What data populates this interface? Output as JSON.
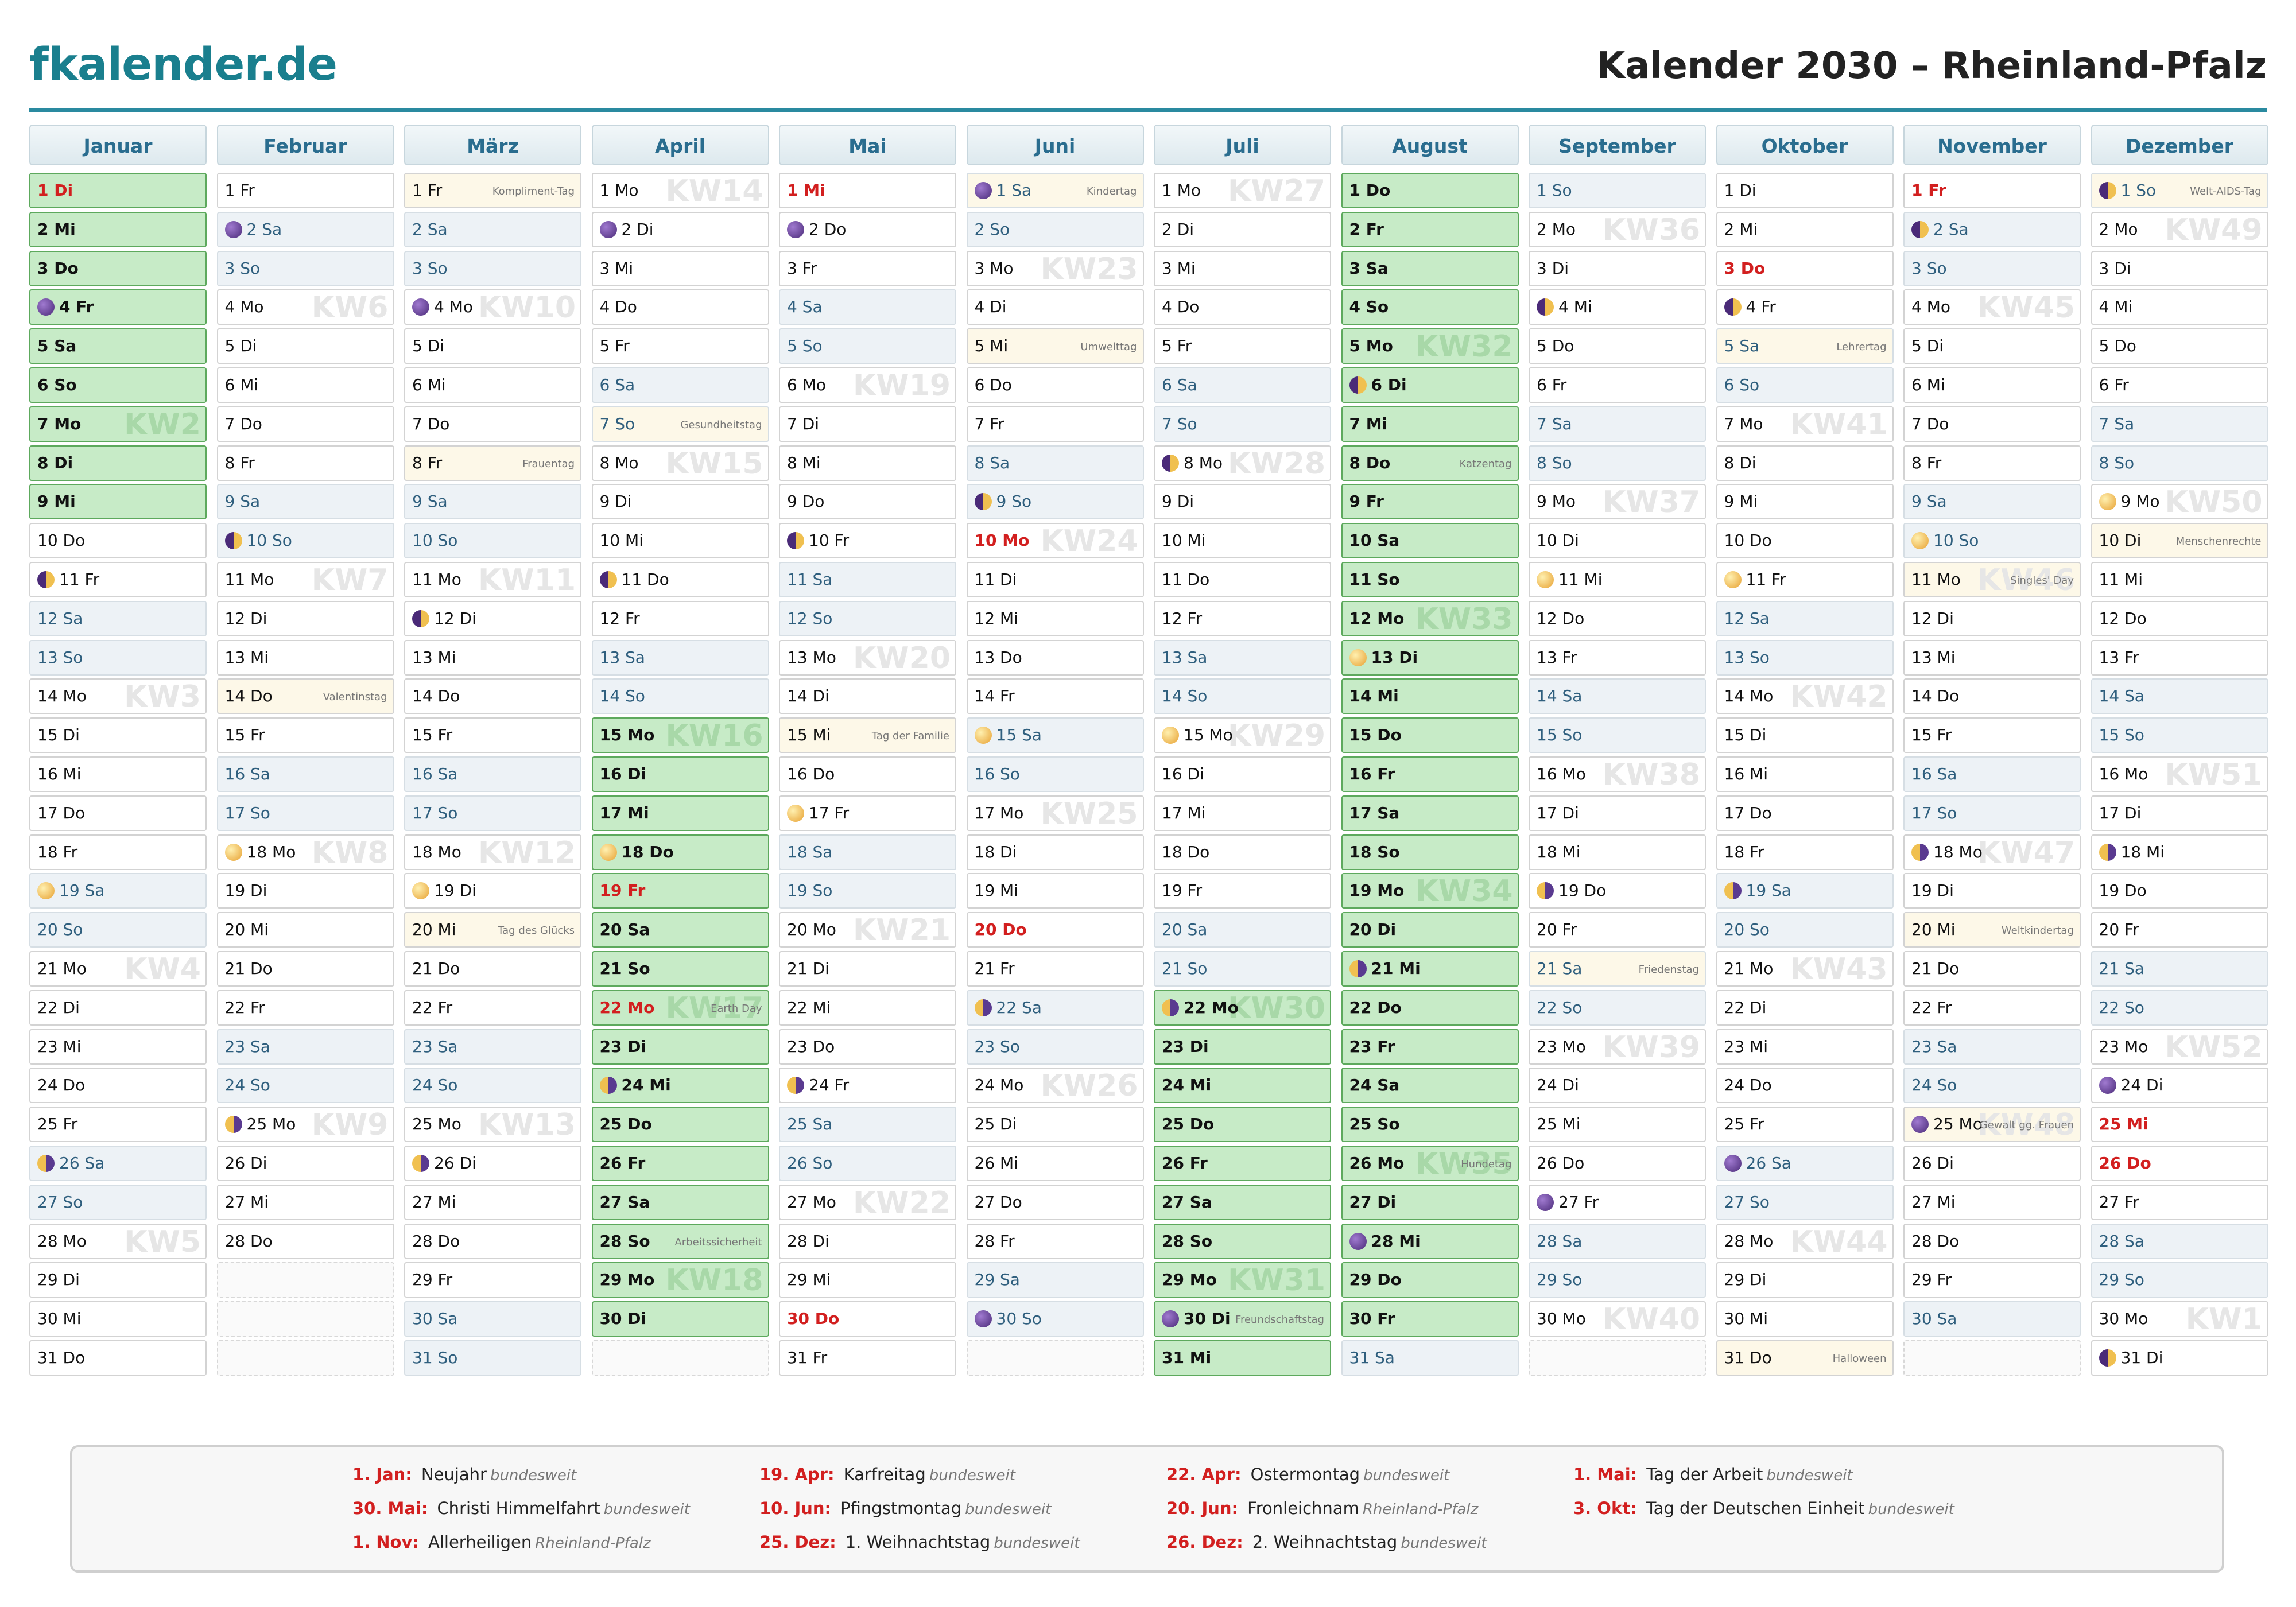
{
  "header": {
    "logo": "fkalender.de",
    "title": "Kalender 2030 – Rheinland-Pfalz"
  },
  "weekend": [
    "Sa",
    "So"
  ],
  "months": [
    {
      "name": "Januar",
      "days": [
        "1 Di",
        "2 Mi",
        "3 Do",
        "4 Fr",
        "5 Sa",
        "6 So",
        "7 Mo",
        "8 Di",
        "9 Mi",
        "10 Do",
        "11 Fr",
        "12 Sa",
        "13 So",
        "14 Mo",
        "15 Di",
        "16 Mi",
        "17 Do",
        "18 Fr",
        "19 Sa",
        "20 So",
        "21 Mo",
        "22 Di",
        "23 Mi",
        "24 Do",
        "25 Fr",
        "26 Sa",
        "27 So",
        "28 Mo",
        "29 Di",
        "30 Mi",
        "31 Do"
      ],
      "holidays": [
        1
      ],
      "vacation": [
        [
          1,
          9
        ]
      ],
      "events": [],
      "kw": [
        {
          "day": 7,
          "label": "KW2"
        },
        {
          "day": 14,
          "label": "KW3"
        },
        {
          "day": 21,
          "label": "KW4"
        },
        {
          "day": 28,
          "label": "KW5"
        }
      ],
      "moons": [
        {
          "day": 4,
          "phase": "new"
        },
        {
          "day": 11,
          "phase": "first"
        },
        {
          "day": 19,
          "phase": "full"
        },
        {
          "day": 26,
          "phase": "last"
        }
      ]
    },
    {
      "name": "Februar",
      "days": [
        "1 Fr",
        "2 Sa",
        "3 So",
        "4 Mo",
        "5 Di",
        "6 Mi",
        "7 Do",
        "8 Fr",
        "9 Sa",
        "10 So",
        "11 Mo",
        "12 Di",
        "13 Mi",
        "14 Do",
        "15 Fr",
        "16 Sa",
        "17 So",
        "18 Mo",
        "19 Di",
        "20 Mi",
        "21 Do",
        "22 Fr",
        "23 Sa",
        "24 So",
        "25 Mo",
        "26 Di",
        "27 Mi",
        "28 Do"
      ],
      "holidays": [],
      "vacation": [],
      "events": [
        {
          "day": 14,
          "text": "Valentinstag"
        }
      ],
      "kw": [
        {
          "day": 4,
          "label": "KW6"
        },
        {
          "day": 11,
          "label": "KW7"
        },
        {
          "day": 18,
          "label": "KW8"
        },
        {
          "day": 25,
          "label": "KW9"
        }
      ],
      "moons": [
        {
          "day": 2,
          "phase": "new"
        },
        {
          "day": 10,
          "phase": "first"
        },
        {
          "day": 18,
          "phase": "full"
        },
        {
          "day": 25,
          "phase": "last"
        }
      ]
    },
    {
      "name": "März",
      "days": [
        "1 Fr",
        "2 Sa",
        "3 So",
        "4 Mo",
        "5 Di",
        "6 Mi",
        "7 Do",
        "8 Fr",
        "9 Sa",
        "10 So",
        "11 Mo",
        "12 Di",
        "13 Mi",
        "14 Do",
        "15 Fr",
        "16 Sa",
        "17 So",
        "18 Mo",
        "19 Di",
        "20 Mi",
        "21 Do",
        "22 Fr",
        "23 Sa",
        "24 So",
        "25 Mo",
        "26 Di",
        "27 Mi",
        "28 Do",
        "29 Fr",
        "30 Sa",
        "31 So"
      ],
      "holidays": [],
      "vacation": [],
      "events": [
        {
          "day": 1,
          "text": "Kompliment-Tag"
        },
        {
          "day": 8,
          "text": "Frauentag"
        },
        {
          "day": 20,
          "text": "Tag des Glücks"
        }
      ],
      "kw": [
        {
          "day": 4,
          "label": "KW10"
        },
        {
          "day": 11,
          "label": "KW11"
        },
        {
          "day": 18,
          "label": "KW12"
        },
        {
          "day": 25,
          "label": "KW13"
        }
      ],
      "moons": [
        {
          "day": 4,
          "phase": "new"
        },
        {
          "day": 12,
          "phase": "first"
        },
        {
          "day": 19,
          "phase": "full"
        },
        {
          "day": 26,
          "phase": "last"
        }
      ]
    },
    {
      "name": "April",
      "days": [
        "1 Mo",
        "2 Di",
        "3 Mi",
        "4 Do",
        "5 Fr",
        "6 Sa",
        "7 So",
        "8 Mo",
        "9 Di",
        "10 Mi",
        "11 Do",
        "12 Fr",
        "13 Sa",
        "14 So",
        "15 Mo",
        "16 Di",
        "17 Mi",
        "18 Do",
        "19 Fr",
        "20 Sa",
        "21 So",
        "22 Mo",
        "23 Di",
        "24 Mi",
        "25 Do",
        "26 Fr",
        "27 Sa",
        "28 So",
        "29 Mo",
        "30 Di"
      ],
      "holidays": [
        19,
        22
      ],
      "vacation": [
        [
          15,
          30
        ]
      ],
      "events": [
        {
          "day": 7,
          "text": "Gesundheitstag"
        },
        {
          "day": 22,
          "text": "Earth Day"
        },
        {
          "day": 28,
          "text": "Arbeitssicherheit"
        }
      ],
      "kw": [
        {
          "day": 1,
          "label": "KW14"
        },
        {
          "day": 8,
          "label": "KW15"
        },
        {
          "day": 15,
          "label": "KW16"
        },
        {
          "day": 22,
          "label": "KW17"
        },
        {
          "day": 29,
          "label": "KW18"
        }
      ],
      "moons": [
        {
          "day": 2,
          "phase": "new"
        },
        {
          "day": 11,
          "phase": "first"
        },
        {
          "day": 18,
          "phase": "full"
        },
        {
          "day": 24,
          "phase": "last"
        }
      ]
    },
    {
      "name": "Mai",
      "days": [
        "1 Mi",
        "2 Do",
        "3 Fr",
        "4 Sa",
        "5 So",
        "6 Mo",
        "7 Di",
        "8 Mi",
        "9 Do",
        "10 Fr",
        "11 Sa",
        "12 So",
        "13 Mo",
        "14 Di",
        "15 Mi",
        "16 Do",
        "17 Fr",
        "18 Sa",
        "19 So",
        "20 Mo",
        "21 Di",
        "22 Mi",
        "23 Do",
        "24 Fr",
        "25 Sa",
        "26 So",
        "27 Mo",
        "28 Di",
        "29 Mi",
        "30 Do",
        "31 Fr"
      ],
      "holidays": [
        1,
        30
      ],
      "vacation": [],
      "events": [
        {
          "day": 15,
          "text": "Tag der Familie"
        }
      ],
      "kw": [
        {
          "day": 6,
          "label": "KW19"
        },
        {
          "day": 13,
          "label": "KW20"
        },
        {
          "day": 20,
          "label": "KW21"
        },
        {
          "day": 27,
          "label": "KW22"
        }
      ],
      "moons": [
        {
          "day": 2,
          "phase": "new"
        },
        {
          "day": 10,
          "phase": "first"
        },
        {
          "day": 17,
          "phase": "full"
        },
        {
          "day": 24,
          "phase": "last"
        }
      ]
    },
    {
      "name": "Juni",
      "days": [
        "1 Sa",
        "2 So",
        "3 Mo",
        "4 Di",
        "5 Mi",
        "6 Do",
        "7 Fr",
        "8 Sa",
        "9 So",
        "10 Mo",
        "11 Di",
        "12 Mi",
        "13 Do",
        "14 Fr",
        "15 Sa",
        "16 So",
        "17 Mo",
        "18 Di",
        "19 Mi",
        "20 Do",
        "21 Fr",
        "22 Sa",
        "23 So",
        "24 Mo",
        "25 Di",
        "26 Mi",
        "27 Do",
        "28 Fr",
        "29 Sa",
        "30 So"
      ],
      "holidays": [
        10,
        20
      ],
      "vacation": [],
      "events": [
        {
          "day": 1,
          "text": "Kindertag"
        },
        {
          "day": 5,
          "text": "Umwelttag"
        }
      ],
      "kw": [
        {
          "day": 3,
          "label": "KW23"
        },
        {
          "day": 10,
          "label": "KW24"
        },
        {
          "day": 17,
          "label": "KW25"
        },
        {
          "day": 24,
          "label": "KW26"
        }
      ],
      "moons": [
        {
          "day": 1,
          "phase": "new"
        },
        {
          "day": 9,
          "phase": "first"
        },
        {
          "day": 15,
          "phase": "full"
        },
        {
          "day": 22,
          "phase": "last"
        },
        {
          "day": 30,
          "phase": "new"
        }
      ]
    },
    {
      "name": "Juli",
      "days": [
        "1 Mo",
        "2 Di",
        "3 Mi",
        "4 Do",
        "5 Fr",
        "6 Sa",
        "7 So",
        "8 Mo",
        "9 Di",
        "10 Mi",
        "11 Do",
        "12 Fr",
        "13 Sa",
        "14 So",
        "15 Mo",
        "16 Di",
        "17 Mi",
        "18 Do",
        "19 Fr",
        "20 Sa",
        "21 So",
        "22 Mo",
        "23 Di",
        "24 Mi",
        "25 Do",
        "26 Fr",
        "27 Sa",
        "28 So",
        "29 Mo",
        "30 Di",
        "31 Mi"
      ],
      "holidays": [],
      "vacation": [
        [
          22,
          31
        ]
      ],
      "events": [
        {
          "day": 30,
          "text": "Freundschaftstag"
        }
      ],
      "kw": [
        {
          "day": 1,
          "label": "KW27"
        },
        {
          "day": 8,
          "label": "KW28"
        },
        {
          "day": 15,
          "label": "KW29"
        },
        {
          "day": 22,
          "label": "KW30"
        },
        {
          "day": 29,
          "label": "KW31"
        }
      ],
      "moons": [
        {
          "day": 8,
          "phase": "first"
        },
        {
          "day": 15,
          "phase": "full"
        },
        {
          "day": 22,
          "phase": "last"
        },
        {
          "day": 30,
          "phase": "new"
        }
      ]
    },
    {
      "name": "August",
      "days": [
        "1 Do",
        "2 Fr",
        "3 Sa",
        "4 So",
        "5 Mo",
        "6 Di",
        "7 Mi",
        "8 Do",
        "9 Fr",
        "10 Sa",
        "11 So",
        "12 Mo",
        "13 Di",
        "14 Mi",
        "15 Do",
        "16 Fr",
        "17 Sa",
        "18 So",
        "19 Mo",
        "20 Di",
        "21 Mi",
        "22 Do",
        "23 Fr",
        "24 Sa",
        "25 So",
        "26 Mo",
        "27 Di",
        "28 Mi",
        "29 Do",
        "30 Fr",
        "31 Sa"
      ],
      "holidays": [],
      "vacation": [
        [
          1,
          30
        ]
      ],
      "events": [
        {
          "day": 8,
          "text": "Katzentag"
        },
        {
          "day": 26,
          "text": "Hundetag"
        }
      ],
      "kw": [
        {
          "day": 5,
          "label": "KW32"
        },
        {
          "day": 12,
          "label": "KW33"
        },
        {
          "day": 19,
          "label": "KW34"
        },
        {
          "day": 26,
          "label": "KW35"
        }
      ],
      "moons": [
        {
          "day": 6,
          "phase": "first"
        },
        {
          "day": 13,
          "phase": "full"
        },
        {
          "day": 21,
          "phase": "last"
        },
        {
          "day": 28,
          "phase": "new"
        }
      ]
    },
    {
      "name": "September",
      "days": [
        "1 So",
        "2 Mo",
        "3 Di",
        "4 Mi",
        "5 Do",
        "6 Fr",
        "7 Sa",
        "8 So",
        "9 Mo",
        "10 Di",
        "11 Mi",
        "12 Do",
        "13 Fr",
        "14 Sa",
        "15 So",
        "16 Mo",
        "17 Di",
        "18 Mi",
        "19 Do",
        "20 Fr",
        "21 Sa",
        "22 So",
        "23 Mo",
        "24 Di",
        "25 Mi",
        "26 Do",
        "27 Fr",
        "28 Sa",
        "29 So",
        "30 Mo"
      ],
      "holidays": [],
      "vacation": [],
      "events": [
        {
          "day": 21,
          "text": "Friedenstag"
        }
      ],
      "kw": [
        {
          "day": 2,
          "label": "KW36"
        },
        {
          "day": 9,
          "label": "KW37"
        },
        {
          "day": 16,
          "label": "KW38"
        },
        {
          "day": 23,
          "label": "KW39"
        },
        {
          "day": 30,
          "label": "KW40"
        }
      ],
      "moons": [
        {
          "day": 4,
          "phase": "first"
        },
        {
          "day": 11,
          "phase": "full"
        },
        {
          "day": 19,
          "phase": "last"
        },
        {
          "day": 27,
          "phase": "new"
        }
      ]
    },
    {
      "name": "Oktober",
      "days": [
        "1 Di",
        "2 Mi",
        "3 Do",
        "4 Fr",
        "5 Sa",
        "6 So",
        "7 Mo",
        "8 Di",
        "9 Mi",
        "10 Do",
        "11 Fr",
        "12 Sa",
        "13 So",
        "14 Mo",
        "15 Di",
        "16 Mi",
        "17 Do",
        "18 Fr",
        "19 Sa",
        "20 So",
        "21 Mo",
        "22 Di",
        "23 Mi",
        "24 Do",
        "25 Fr",
        "26 Sa",
        "27 So",
        "28 Mo",
        "29 Di",
        "30 Mi",
        "31 Do"
      ],
      "holidays": [
        3
      ],
      "vacation": [],
      "events": [
        {
          "day": 5,
          "text": "Lehrertag"
        },
        {
          "day": 31,
          "text": "Halloween"
        }
      ],
      "kw": [
        {
          "day": 7,
          "label": "KW41"
        },
        {
          "day": 14,
          "label": "KW42"
        },
        {
          "day": 21,
          "label": "KW43"
        },
        {
          "day": 28,
          "label": "KW44"
        }
      ],
      "moons": [
        {
          "day": 4,
          "phase": "first"
        },
        {
          "day": 11,
          "phase": "full"
        },
        {
          "day": 19,
          "phase": "last"
        },
        {
          "day": 26,
          "phase": "new"
        }
      ]
    },
    {
      "name": "November",
      "days": [
        "1 Fr",
        "2 Sa",
        "3 So",
        "4 Mo",
        "5 Di",
        "6 Mi",
        "7 Do",
        "8 Fr",
        "9 Sa",
        "10 So",
        "11 Mo",
        "12 Di",
        "13 Mi",
        "14 Do",
        "15 Fr",
        "16 Sa",
        "17 So",
        "18 Mo",
        "19 Di",
        "20 Mi",
        "21 Do",
        "22 Fr",
        "23 Sa",
        "24 So",
        "25 Mo",
        "26 Di",
        "27 Mi",
        "28 Do",
        "29 Fr",
        "30 Sa"
      ],
      "holidays": [
        1
      ],
      "vacation": [],
      "events": [
        {
          "day": 11,
          "text": "Singles' Day"
        },
        {
          "day": 20,
          "text": "Weltkindertag"
        },
        {
          "day": 25,
          "text": "Gewalt gg. Frauen"
        }
      ],
      "kw": [
        {
          "day": 4,
          "label": "KW45"
        },
        {
          "day": 11,
          "label": "KW46"
        },
        {
          "day": 18,
          "label": "KW47"
        },
        {
          "day": 25,
          "label": "KW48"
        }
      ],
      "moons": [
        {
          "day": 2,
          "phase": "first"
        },
        {
          "day": 10,
          "phase": "full"
        },
        {
          "day": 18,
          "phase": "last"
        },
        {
          "day": 25,
          "phase": "new"
        }
      ]
    },
    {
      "name": "Dezember",
      "days": [
        "1 So",
        "2 Mo",
        "3 Di",
        "4 Mi",
        "5 Do",
        "6 Fr",
        "7 Sa",
        "8 So",
        "9 Mo",
        "10 Di",
        "11 Mi",
        "12 Do",
        "13 Fr",
        "14 Sa",
        "15 So",
        "16 Mo",
        "17 Di",
        "18 Mi",
        "19 Do",
        "20 Fr",
        "21 Sa",
        "22 So",
        "23 Mo",
        "24 Di",
        "25 Mi",
        "26 Do",
        "27 Fr",
        "28 Sa",
        "29 So",
        "30 Mo",
        "31 Di"
      ],
      "holidays": [
        25,
        26
      ],
      "vacation": [],
      "events": [
        {
          "day": 1,
          "text": "Welt-AIDS-Tag"
        },
        {
          "day": 10,
          "text": "Menschenrechte"
        }
      ],
      "kw": [
        {
          "day": 2,
          "label": "KW49"
        },
        {
          "day": 9,
          "label": "KW50"
        },
        {
          "day": 16,
          "label": "KW51"
        },
        {
          "day": 23,
          "label": "KW52"
        },
        {
          "day": 30,
          "label": "KW1"
        }
      ],
      "moons": [
        {
          "day": 1,
          "phase": "first"
        },
        {
          "day": 9,
          "phase": "full"
        },
        {
          "day": 18,
          "phase": "last"
        },
        {
          "day": 24,
          "phase": "new"
        },
        {
          "day": 31,
          "phase": "first"
        }
      ]
    }
  ],
  "legend": [
    {
      "date": "1. Jan:",
      "name": "Neujahr",
      "scope": "bundesweit"
    },
    {
      "date": "19. Apr:",
      "name": "Karfreitag",
      "scope": "bundesweit"
    },
    {
      "date": "22. Apr:",
      "name": "Ostermontag",
      "scope": "bundesweit"
    },
    {
      "date": "1. Mai:",
      "name": "Tag der Arbeit",
      "scope": "bundesweit"
    },
    {
      "date": "30. Mai:",
      "name": "Christi Himmelfahrt",
      "scope": "bundesweit"
    },
    {
      "date": "10. Jun:",
      "name": "Pfingstmontag",
      "scope": "bundesweit"
    },
    {
      "date": "20. Jun:",
      "name": "Fronleichnam",
      "scope": "Rheinland-Pfalz"
    },
    {
      "date": "3. Okt:",
      "name": "Tag der Deutschen Einheit",
      "scope": "bundesweit"
    },
    {
      "date": "1. Nov:",
      "name": "Allerheiligen",
      "scope": "Rheinland-Pfalz"
    },
    {
      "date": "25. Dez:",
      "name": "1. Weihnachtstag",
      "scope": "bundesweit"
    },
    {
      "date": "26. Dez:",
      "name": "2. Weihnachtstag",
      "scope": "bundesweit"
    }
  ]
}
